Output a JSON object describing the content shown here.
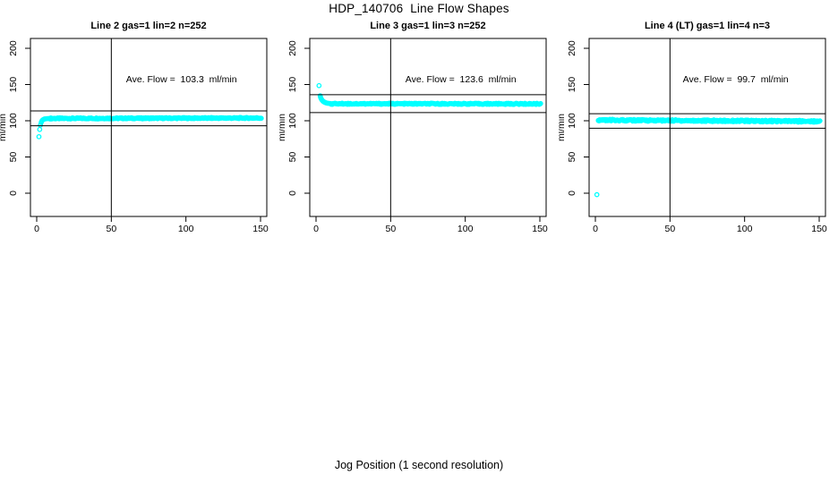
{
  "figure": {
    "main_title": "HDP_140706  Line Flow Shapes",
    "xlabel": "Jog Position (1 second resolution)",
    "ylabel": "ml/min",
    "background_color": "#FFFFFF",
    "axis_color": "#000000",
    "point_color": "#00FFFF"
  },
  "chart_data": [
    {
      "type": "scatter",
      "title": "Line 2 gas=1 lin=2 n=252",
      "annotation": "Ave. Flow =  103.3  ml/min",
      "ave_flow_ml_min": 103.3,
      "ylabel": "ml/min",
      "xlim": [
        -4.2,
        154.2
      ],
      "ylim": [
        -32.1,
        213.6
      ],
      "xticks": [
        0,
        50,
        100,
        150
      ],
      "yticks": [
        0,
        50,
        100,
        150,
        200
      ],
      "vline_x": 50,
      "hlines": [
        113.6,
        93.0
      ],
      "annotation_pos": [
        97,
        153
      ],
      "transient_points": [
        [
          1.5,
          78
        ],
        [
          2,
          88
        ],
        [
          2.5,
          94
        ],
        [
          3,
          97.5
        ],
        [
          3.5,
          99.8
        ],
        [
          4,
          101
        ],
        [
          4.5,
          101.8
        ],
        [
          5,
          102.3
        ],
        [
          5.5,
          102.5
        ],
        [
          6,
          102.7
        ],
        [
          7,
          102.9
        ],
        [
          8,
          103.1
        ],
        [
          9,
          103.2
        ]
      ],
      "steady_band": {
        "x_from": 9,
        "x_to": 150.5,
        "y_from": 103.2,
        "y_to": 103.8,
        "step": 0.5,
        "thickness": 1.6
      }
    },
    {
      "type": "scatter",
      "title": "Line 3 gas=1 lin=3 n=252",
      "annotation": "Ave. Flow =  123.6  ml/min",
      "ave_flow_ml_min": 123.6,
      "ylabel": "ml/min",
      "xlim": [
        -4.2,
        154.2
      ],
      "ylim": [
        -32.1,
        213.6
      ],
      "xticks": [
        0,
        50,
        100,
        150
      ],
      "yticks": [
        0,
        50,
        100,
        150,
        200
      ],
      "vline_x": 50,
      "hlines": [
        136.0,
        111.2
      ],
      "annotation_pos": [
        97,
        153
      ],
      "transient_points": [
        [
          2,
          148.5
        ],
        [
          2.8,
          134.5
        ],
        [
          3,
          132.5
        ],
        [
          3.3,
          131
        ],
        [
          3.6,
          129.8
        ],
        [
          4,
          128.6
        ],
        [
          4.4,
          127.6
        ],
        [
          4.8,
          126.8
        ],
        [
          5.2,
          126.2
        ],
        [
          5.6,
          125.7
        ],
        [
          6,
          125.3
        ],
        [
          6.5,
          124.9
        ],
        [
          7,
          124.6
        ],
        [
          7.5,
          124.3
        ],
        [
          8,
          124.1
        ],
        [
          9,
          123.9
        ],
        [
          10,
          123.7
        ]
      ],
      "steady_band": {
        "x_from": 10,
        "x_to": 150.5,
        "y_from": 123.5,
        "y_to": 123.3,
        "step": 0.5,
        "thickness": 1.6
      }
    },
    {
      "type": "scatter",
      "title": "Line 4 (LT) gas=1 lin=4 n=3",
      "annotation": "Ave. Flow =  99.7  ml/min",
      "ave_flow_ml_min": 99.7,
      "ylabel": "ml/min",
      "xlim": [
        -4.2,
        154.2
      ],
      "ylim": [
        -32.1,
        213.6
      ],
      "xticks": [
        0,
        50,
        100,
        150
      ],
      "yticks": [
        0,
        50,
        100,
        150,
        200
      ],
      "vline_x": 50,
      "hlines": [
        109.7,
        89.7
      ],
      "annotation_pos": [
        94,
        153
      ],
      "transient_points": [
        [
          1,
          -2
        ],
        [
          2,
          100.3
        ],
        [
          2.4,
          100.8
        ]
      ],
      "steady_band": {
        "x_from": 2,
        "x_to": 150.5,
        "y_from": 100.9,
        "y_to": 99.2,
        "step": 0.45,
        "thickness": 2.4
      }
    }
  ]
}
